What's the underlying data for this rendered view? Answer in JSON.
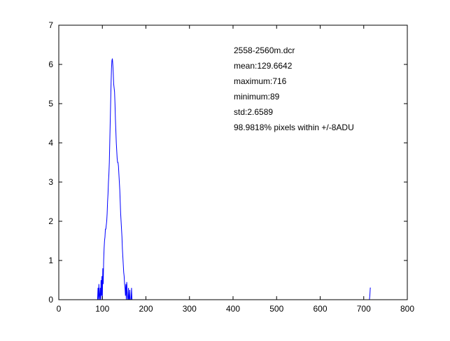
{
  "chart_data": {
    "type": "line",
    "title": "",
    "xlabel": "",
    "ylabel": "",
    "xlim": [
      0,
      800
    ],
    "ylim": [
      0,
      7
    ],
    "xticks": [
      0,
      100,
      200,
      300,
      400,
      500,
      600,
      700,
      800
    ],
    "yticks": [
      0,
      1,
      2,
      3,
      4,
      5,
      6,
      7
    ],
    "grid": false,
    "line_color": "#0000ff",
    "annotations": [
      "2558-2560m.dcr",
      "mean:129.6642",
      "maximum:716",
      "minimum:89",
      "std:2.6589",
      "98.9818% pixels within +/-8ADU"
    ],
    "series": [
      {
        "values": [
          [
            89,
            0.0
          ],
          [
            90,
            0.3
          ],
          [
            91,
            0.0
          ],
          [
            92,
            0.4
          ],
          [
            93,
            0.1
          ],
          [
            94,
            0.0
          ],
          [
            95,
            0.3
          ],
          [
            96,
            0.0
          ],
          [
            97,
            0.5
          ],
          [
            98,
            0.1
          ],
          [
            99,
            0.6
          ],
          [
            100,
            0.0
          ],
          [
            101,
            0.8
          ],
          [
            102,
            0.4
          ],
          [
            103,
            1.0
          ],
          [
            104,
            1.3
          ],
          [
            105,
            1.5
          ],
          [
            106,
            1.6
          ],
          [
            107,
            1.8
          ],
          [
            108,
            1.8
          ],
          [
            109,
            1.9
          ],
          [
            110,
            2.0
          ],
          [
            111,
            2.2
          ],
          [
            112,
            2.5
          ],
          [
            113,
            2.7
          ],
          [
            114,
            3.0
          ],
          [
            115,
            3.2
          ],
          [
            116,
            3.5
          ],
          [
            117,
            4.0
          ],
          [
            118,
            4.5
          ],
          [
            119,
            5.0
          ],
          [
            120,
            5.5
          ],
          [
            121,
            5.9
          ],
          [
            122,
            6.1
          ],
          [
            123,
            6.15
          ],
          [
            124,
            6.0
          ],
          [
            125,
            5.8
          ],
          [
            126,
            5.5
          ],
          [
            127,
            5.4
          ],
          [
            128,
            5.3
          ],
          [
            129,
            5.0
          ],
          [
            130,
            4.6
          ],
          [
            131,
            4.3
          ],
          [
            132,
            4.0
          ],
          [
            133,
            3.8
          ],
          [
            134,
            3.6
          ],
          [
            135,
            3.5
          ],
          [
            136,
            3.5
          ],
          [
            137,
            3.4
          ],
          [
            138,
            3.2
          ],
          [
            139,
            3.0
          ],
          [
            140,
            2.8
          ],
          [
            141,
            2.5
          ],
          [
            142,
            2.2
          ],
          [
            143,
            2.0
          ],
          [
            144,
            1.8
          ],
          [
            145,
            1.6
          ],
          [
            146,
            1.3
          ],
          [
            147,
            1.1
          ],
          [
            148,
            0.9
          ],
          [
            149,
            0.7
          ],
          [
            150,
            0.6
          ],
          [
            151,
            0.4
          ],
          [
            152,
            0.3
          ],
          [
            153,
            0.1
          ],
          [
            154,
            0.4
          ],
          [
            155,
            0.0
          ],
          [
            156,
            0.45
          ],
          [
            157,
            0.2
          ],
          [
            158,
            0.0
          ],
          [
            159,
            0.0
          ],
          [
            160,
            0.3
          ],
          [
            161,
            0.0
          ],
          [
            162,
            0.0
          ],
          [
            163,
            0.25
          ],
          [
            164,
            0.0
          ],
          [
            165,
            0.0
          ],
          [
            166,
            0.0
          ],
          [
            167,
            0.3
          ],
          [
            168,
            0.0
          ],
          [
            169,
            0.0
          ],
          [
            170,
            0.0
          ],
          [
            171,
            0.0
          ],
          [
            200,
            0.0
          ],
          [
            300,
            0.0
          ],
          [
            400,
            0.0
          ],
          [
            500,
            0.0
          ],
          [
            600,
            0.0
          ],
          [
            700,
            0.0
          ],
          [
            713,
            0.0
          ],
          [
            714,
            0.1
          ],
          [
            715,
            0.3
          ],
          [
            716,
            0.3
          ]
        ]
      }
    ]
  }
}
